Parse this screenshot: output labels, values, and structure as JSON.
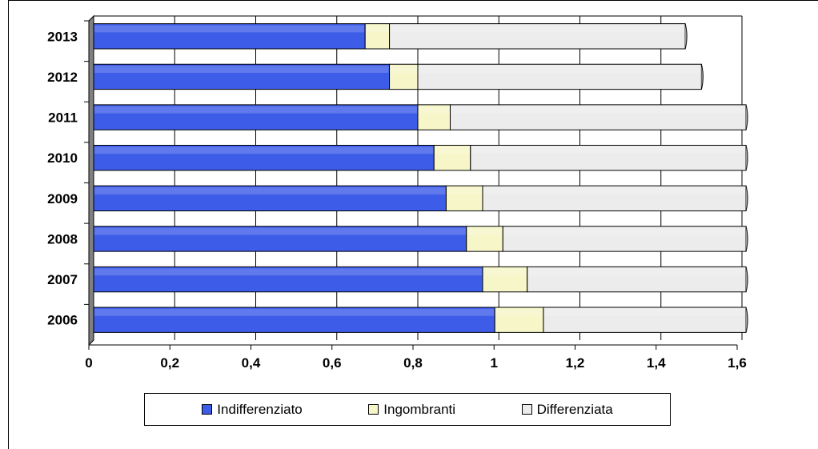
{
  "chart_data": {
    "type": "bar",
    "orientation": "horizontal",
    "stacked": true,
    "categories": [
      "2013",
      "2012",
      "2011",
      "2010",
      "2009",
      "2008",
      "2007",
      "2006"
    ],
    "series": [
      {
        "name": "Indifferenziato",
        "color": "#3d5ce8",
        "values": [
          0.67,
          0.73,
          0.8,
          0.84,
          0.87,
          0.92,
          0.96,
          0.99
        ]
      },
      {
        "name": "Ingombranti",
        "color": "#f6f6c8",
        "values": [
          0.06,
          0.07,
          0.08,
          0.09,
          0.09,
          0.09,
          0.11,
          0.12
        ]
      },
      {
        "name": "Differenziata",
        "color": "#ececec",
        "values": [
          0.73,
          0.7,
          0.73,
          0.68,
          0.65,
          0.6,
          0.54,
          0.5
        ]
      }
    ],
    "xlim": [
      0,
      1.6
    ],
    "x_ticks": [
      "0",
      "0,2",
      "0,4",
      "0,6",
      "0,8",
      "1",
      "1,2",
      "1,4",
      "1,6"
    ],
    "grid": true,
    "legend_position": "bottom"
  }
}
